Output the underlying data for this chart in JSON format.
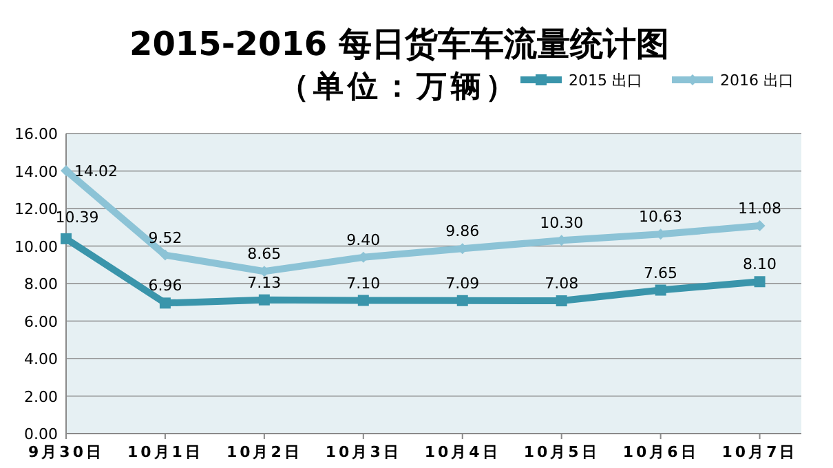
{
  "chart_data": {
    "type": "line",
    "title": "2015-2016 每日货车车流量统计图",
    "subtitle": "（单位：万辆）",
    "categories": [
      "9月30日",
      "10月1日",
      "10月2日",
      "10月3日",
      "10月4日",
      "10月5日",
      "10月6日",
      "10月7日"
    ],
    "series": [
      {
        "name": "2015 出口",
        "color": "#3a95ab",
        "marker": "square",
        "values": [
          10.39,
          6.96,
          7.13,
          7.1,
          7.09,
          7.08,
          7.65,
          8.1
        ],
        "value_labels": [
          "10.39",
          "6.96",
          "7.13",
          "7.10",
          "7.09",
          "7.08",
          "7.65",
          "8.10"
        ]
      },
      {
        "name": "2016 出口",
        "color": "#8cc3d6",
        "marker": "diamond",
        "values": [
          14.02,
          9.52,
          8.65,
          9.4,
          9.86,
          10.3,
          10.63,
          11.08
        ],
        "value_labels": [
          "14.02",
          "9.52",
          "8.65",
          "9.40",
          "9.86",
          "10.30",
          "10.63",
          "11.08"
        ]
      }
    ],
    "ylim": [
      0,
      16
    ],
    "yticks": [
      {
        "value": 0,
        "label": "0.00"
      },
      {
        "value": 2,
        "label": "2.00"
      },
      {
        "value": 4,
        "label": "4.00"
      },
      {
        "value": 6,
        "label": "6.00"
      },
      {
        "value": 8,
        "label": "8.00"
      },
      {
        "value": 10,
        "label": "10.00"
      },
      {
        "value": 12,
        "label": "12.00"
      },
      {
        "value": 14,
        "label": "14.00"
      },
      {
        "value": 16,
        "label": "16.00"
      }
    ],
    "grid": "y",
    "legend": "top right"
  }
}
